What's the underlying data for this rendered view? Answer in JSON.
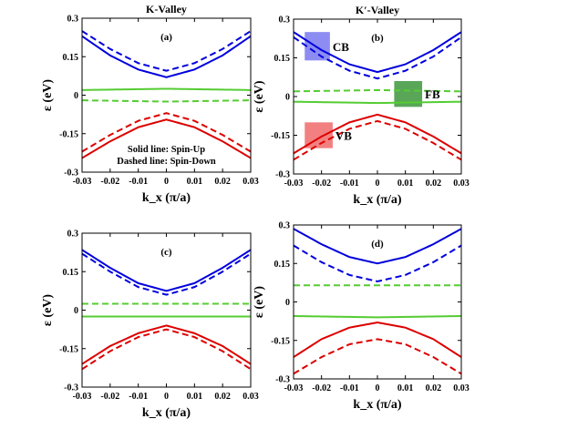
{
  "chart_data": [
    {
      "type": "line",
      "id": "a",
      "panel_label": "(a)",
      "title": "K-Valley",
      "xlabel": "k_x (π/a)",
      "ylabel": "ε (eV)",
      "xlim": [
        -0.03,
        0.03
      ],
      "ylim": [
        -0.3,
        0.3
      ],
      "xticks": [
        "-0.03",
        "-0.02",
        "-0.01",
        "0",
        "0.01",
        "0.02",
        "0.03"
      ],
      "yticks": [
        "0.3",
        "0.15",
        "0",
        "-0.15",
        "-0.3"
      ],
      "annotations": [
        "Solid line: Spin-Up",
        "Dashed line: Spin-Down"
      ],
      "series": [
        {
          "name": "CB spin-up",
          "color": "#0000dd",
          "style": "solid",
          "x": [
            -0.03,
            -0.02,
            -0.01,
            0,
            0.01,
            0.02,
            0.03
          ],
          "y": [
            0.23,
            0.155,
            0.1,
            0.07,
            0.1,
            0.155,
            0.23
          ]
        },
        {
          "name": "CB spin-down",
          "color": "#0000dd",
          "style": "dashed",
          "x": [
            -0.03,
            -0.02,
            -0.01,
            0,
            0.01,
            0.02,
            0.03
          ],
          "y": [
            0.25,
            0.18,
            0.125,
            0.095,
            0.125,
            0.18,
            0.25
          ]
        },
        {
          "name": "FB spin-up",
          "color": "#55cc33",
          "style": "solid",
          "x": [
            -0.03,
            0,
            0.03
          ],
          "y": [
            0.02,
            0.025,
            0.02
          ]
        },
        {
          "name": "FB spin-down",
          "color": "#55cc33",
          "style": "dashed",
          "x": [
            -0.03,
            0,
            0.03
          ],
          "y": [
            -0.02,
            -0.025,
            -0.02
          ]
        },
        {
          "name": "VB spin-up",
          "color": "#dd0000",
          "style": "solid",
          "x": [
            -0.03,
            -0.02,
            -0.01,
            0,
            0.01,
            0.02,
            0.03
          ],
          "y": [
            -0.245,
            -0.18,
            -0.125,
            -0.095,
            -0.125,
            -0.18,
            -0.245
          ]
        },
        {
          "name": "VB spin-down",
          "color": "#dd0000",
          "style": "dashed",
          "x": [
            -0.03,
            -0.02,
            -0.01,
            0,
            0.01,
            0.02,
            0.03
          ],
          "y": [
            -0.22,
            -0.155,
            -0.1,
            -0.07,
            -0.1,
            -0.155,
            -0.22
          ]
        }
      ]
    },
    {
      "type": "line",
      "id": "b",
      "panel_label": "(b)",
      "title": "K′-Valley",
      "xlabel": "k_x (π/a)",
      "ylabel": "ε (eV)",
      "xlim": [
        -0.03,
        0.03
      ],
      "ylim": [
        -0.3,
        0.3
      ],
      "xticks": [
        "-0.03",
        "-0.02",
        "-0.01",
        "0",
        "0.01",
        "0.02",
        "0.03"
      ],
      "yticks": [
        "0.3",
        "0.15",
        "0",
        "-0.15",
        "-0.3"
      ],
      "band_labels": [
        {
          "text": "CB",
          "color": "#0000dd",
          "box_color": "#6666ee",
          "x_range": [
            -0.026,
            -0.017
          ],
          "y_range": [
            0.14,
            0.25
          ]
        },
        {
          "text": "FB",
          "color": "#118811",
          "box_color": "#228822",
          "x_range": [
            0.006,
            0.016
          ],
          "y_range": [
            -0.04,
            0.06
          ]
        },
        {
          "text": "VB",
          "color": "#ee1111",
          "box_color": "#ee5555",
          "x_range": [
            -0.026,
            -0.016
          ],
          "y_range": [
            -0.2,
            -0.1
          ]
        }
      ],
      "series": [
        {
          "name": "CB spin-up",
          "color": "#0000dd",
          "style": "solid",
          "x": [
            -0.03,
            -0.02,
            -0.01,
            0,
            0.01,
            0.02,
            0.03
          ],
          "y": [
            0.25,
            0.18,
            0.125,
            0.095,
            0.125,
            0.18,
            0.25
          ]
        },
        {
          "name": "CB spin-down",
          "color": "#0000dd",
          "style": "dashed",
          "x": [
            -0.03,
            -0.02,
            -0.01,
            0,
            0.01,
            0.02,
            0.03
          ],
          "y": [
            0.23,
            0.155,
            0.1,
            0.07,
            0.1,
            0.155,
            0.23
          ]
        },
        {
          "name": "FB spin-up",
          "color": "#55cc33",
          "style": "solid",
          "x": [
            -0.03,
            0,
            0.03
          ],
          "y": [
            -0.02,
            -0.025,
            -0.02
          ]
        },
        {
          "name": "FB spin-down",
          "color": "#55cc33",
          "style": "dashed",
          "x": [
            -0.03,
            0,
            0.03
          ],
          "y": [
            0.02,
            0.025,
            0.02
          ]
        },
        {
          "name": "VB spin-up",
          "color": "#dd0000",
          "style": "solid",
          "x": [
            -0.03,
            -0.02,
            -0.01,
            0,
            0.01,
            0.02,
            0.03
          ],
          "y": [
            -0.22,
            -0.155,
            -0.1,
            -0.07,
            -0.1,
            -0.155,
            -0.22
          ]
        },
        {
          "name": "VB spin-down",
          "color": "#dd0000",
          "style": "dashed",
          "x": [
            -0.03,
            -0.02,
            -0.01,
            0,
            0.01,
            0.02,
            0.03
          ],
          "y": [
            -0.245,
            -0.18,
            -0.125,
            -0.095,
            -0.125,
            -0.18,
            -0.245
          ]
        }
      ]
    },
    {
      "type": "line",
      "id": "c",
      "panel_label": "(c)",
      "title": "",
      "xlabel": "k_x (π/a)",
      "ylabel": "ε (eV)",
      "xlim": [
        -0.03,
        0.03
      ],
      "ylim": [
        -0.3,
        0.3
      ],
      "xticks": [
        "-0.03",
        "-0.02",
        "-0.01",
        "0",
        "0.01",
        "0.02",
        "0.03"
      ],
      "yticks": [
        "0.3",
        "0.15",
        "0",
        "-0.15",
        "-0.3"
      ],
      "series": [
        {
          "name": "CB spin-up",
          "color": "#0000dd",
          "style": "solid",
          "x": [
            -0.03,
            -0.02,
            -0.01,
            0,
            0.01,
            0.02,
            0.03
          ],
          "y": [
            0.235,
            0.165,
            0.105,
            0.075,
            0.105,
            0.165,
            0.235
          ]
        },
        {
          "name": "CB spin-down",
          "color": "#0000dd",
          "style": "dashed",
          "x": [
            -0.03,
            -0.02,
            -0.01,
            0,
            0.01,
            0.02,
            0.03
          ],
          "y": [
            0.22,
            0.15,
            0.09,
            0.06,
            0.09,
            0.15,
            0.22
          ]
        },
        {
          "name": "FB spin-up",
          "color": "#55cc33",
          "style": "solid",
          "x": [
            -0.03,
            0,
            0.03
          ],
          "y": [
            -0.025,
            -0.025,
            -0.025
          ]
        },
        {
          "name": "FB spin-down",
          "color": "#55cc33",
          "style": "dashed",
          "x": [
            -0.03,
            0,
            0.03
          ],
          "y": [
            0.025,
            0.025,
            0.025
          ]
        },
        {
          "name": "VB spin-up",
          "color": "#dd0000",
          "style": "solid",
          "x": [
            -0.03,
            -0.02,
            -0.01,
            0,
            0.01,
            0.02,
            0.03
          ],
          "y": [
            -0.21,
            -0.14,
            -0.09,
            -0.06,
            -0.09,
            -0.14,
            -0.21
          ]
        },
        {
          "name": "VB spin-down",
          "color": "#dd0000",
          "style": "dashed",
          "x": [
            -0.03,
            -0.02,
            -0.01,
            0,
            0.01,
            0.02,
            0.03
          ],
          "y": [
            -0.23,
            -0.16,
            -0.105,
            -0.075,
            -0.105,
            -0.16,
            -0.23
          ]
        }
      ]
    },
    {
      "type": "line",
      "id": "d",
      "panel_label": "(d)",
      "title": "",
      "xlabel": "k_x (π/a)",
      "ylabel": "ε (eV)",
      "xlim": [
        -0.03,
        0.03
      ],
      "ylim": [
        -0.3,
        0.3
      ],
      "xticks": [
        "-0.03",
        "-0.02",
        "-0.01",
        "0",
        "0.01",
        "0.02",
        "0.03"
      ],
      "yticks": [
        "0.3",
        "0.15",
        "0",
        "-0.15",
        "-0.3"
      ],
      "series": [
        {
          "name": "CB spin-up",
          "color": "#0000dd",
          "style": "solid",
          "x": [
            -0.03,
            -0.02,
            -0.01,
            0,
            0.01,
            0.02,
            0.03
          ],
          "y": [
            0.285,
            0.225,
            0.175,
            0.15,
            0.175,
            0.225,
            0.285
          ]
        },
        {
          "name": "CB spin-down",
          "color": "#0000dd",
          "style": "dashed",
          "x": [
            -0.03,
            -0.02,
            -0.01,
            0,
            0.01,
            0.02,
            0.03
          ],
          "y": [
            0.22,
            0.155,
            0.105,
            0.08,
            0.105,
            0.155,
            0.22
          ]
        },
        {
          "name": "FB spin-up",
          "color": "#55cc33",
          "style": "solid",
          "x": [
            -0.03,
            0,
            0.03
          ],
          "y": [
            -0.055,
            -0.06,
            -0.055
          ]
        },
        {
          "name": "FB spin-down",
          "color": "#55cc33",
          "style": "dashed",
          "x": [
            -0.03,
            0,
            0.03
          ],
          "y": [
            0.065,
            0.065,
            0.065
          ]
        },
        {
          "name": "VB spin-up",
          "color": "#dd0000",
          "style": "solid",
          "x": [
            -0.03,
            -0.02,
            -0.01,
            0,
            0.01,
            0.02,
            0.03
          ],
          "y": [
            -0.215,
            -0.145,
            -0.1,
            -0.08,
            -0.1,
            -0.145,
            -0.215
          ]
        },
        {
          "name": "VB spin-down",
          "color": "#dd0000",
          "style": "dashed",
          "x": [
            -0.03,
            -0.02,
            -0.01,
            0,
            0.01,
            0.02,
            0.03
          ],
          "y": [
            -0.28,
            -0.215,
            -0.165,
            -0.145,
            -0.165,
            -0.215,
            -0.28
          ]
        }
      ]
    }
  ]
}
